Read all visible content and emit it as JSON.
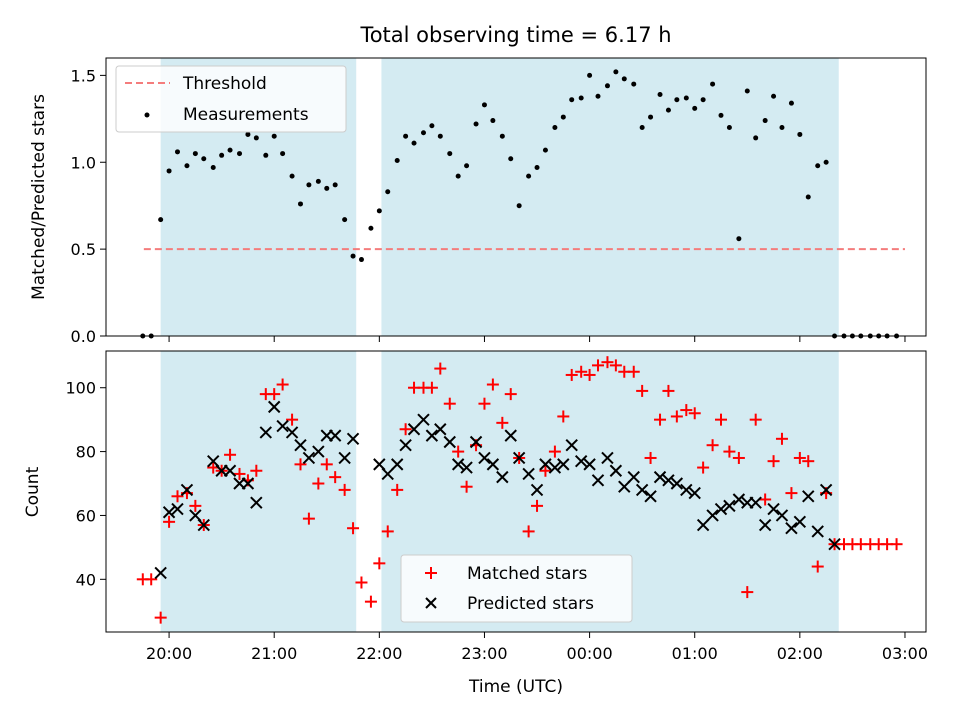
{
  "chart_data": [
    {
      "type": "scatter",
      "title": "Total observing time = 6.17 h",
      "ylabel": "Matched/Predicted stars",
      "ylim": [
        0,
        1.6
      ],
      "yticks": [
        "0.0",
        "0.5",
        "1.0",
        "1.5"
      ],
      "xlim_hours": [
        -0.6,
        7.2
      ],
      "grid": false,
      "legend_position": "upper-left",
      "legend": [
        "Threshold",
        "Measurements"
      ],
      "threshold": {
        "name": "Threshold",
        "value": 0.5,
        "x_range": [
          -0.24,
          7.0
        ],
        "color": "#f47c7c"
      },
      "shaded_intervals": [
        [
          -0.08,
          1.78
        ],
        [
          2.02,
          6.37
        ]
      ],
      "shade_color": "#add8e6",
      "series": [
        {
          "name": "Measurements",
          "color": "#000000",
          "x": [
            -0.25,
            -0.17,
            -0.08,
            0.0,
            0.08,
            0.17,
            0.25,
            0.33,
            0.42,
            0.5,
            0.58,
            0.67,
            0.75,
            0.83,
            0.92,
            1.0,
            1.08,
            1.17,
            1.25,
            1.33,
            1.42,
            1.5,
            1.58,
            1.67,
            1.75,
            1.83,
            1.92,
            2.0,
            2.08,
            2.17,
            2.25,
            2.33,
            2.42,
            2.5,
            2.58,
            2.67,
            2.75,
            2.83,
            2.92,
            3.0,
            3.08,
            3.17,
            3.25,
            3.33,
            3.42,
            3.5,
            3.58,
            3.67,
            3.75,
            3.83,
            3.92,
            4.0,
            4.08,
            4.17,
            4.25,
            4.33,
            4.42,
            4.5,
            4.58,
            4.67,
            4.75,
            4.83,
            4.92,
            5.0,
            5.08,
            5.17,
            5.25,
            5.33,
            5.42,
            5.5,
            5.58,
            5.67,
            5.75,
            5.83,
            5.92,
            6.0,
            6.08,
            6.17,
            6.25,
            6.33,
            6.42,
            6.5,
            6.58,
            6.67,
            6.75,
            6.83,
            6.92
          ],
          "y": [
            0.0,
            0.0,
            0.67,
            0.95,
            1.06,
            0.98,
            1.05,
            1.02,
            0.97,
            1.04,
            1.07,
            1.05,
            1.16,
            1.14,
            1.04,
            1.15,
            1.05,
            0.92,
            0.76,
            0.87,
            0.89,
            0.85,
            0.87,
            0.67,
            0.46,
            0.44,
            0.62,
            0.72,
            0.83,
            1.01,
            1.15,
            1.11,
            1.17,
            1.21,
            1.15,
            1.05,
            0.92,
            0.98,
            1.22,
            1.33,
            1.24,
            1.15,
            1.02,
            0.75,
            0.92,
            0.97,
            1.07,
            1.2,
            1.26,
            1.36,
            1.37,
            1.5,
            1.38,
            1.44,
            1.52,
            1.48,
            1.45,
            1.2,
            1.26,
            1.39,
            1.3,
            1.36,
            1.37,
            1.31,
            1.36,
            1.45,
            1.27,
            1.2,
            0.56,
            1.41,
            1.14,
            1.24,
            1.38,
            1.2,
            1.34,
            1.16,
            0.8,
            0.98,
            1.0,
            0.0,
            0.0,
            0.0,
            0.0,
            0.0,
            0.0,
            0.0,
            0.0
          ]
        }
      ]
    },
    {
      "type": "scatter",
      "xlabel": "Time (UTC)",
      "ylabel": "Count",
      "ylim": [
        23.5,
        111.5
      ],
      "yticks": [
        "40",
        "60",
        "80",
        "100"
      ],
      "xlim_hours": [
        -0.6,
        7.2
      ],
      "xticks": [
        "20:00",
        "21:00",
        "22:00",
        "23:00",
        "00:00",
        "01:00",
        "02:00",
        "03:00"
      ],
      "grid": false,
      "legend_position": "lower-center",
      "legend": [
        "Matched stars",
        "Predicted stars"
      ],
      "shaded_intervals": [
        [
          -0.08,
          1.78
        ],
        [
          2.02,
          6.37
        ]
      ],
      "shade_color": "#add8e6",
      "series": [
        {
          "name": "Matched stars",
          "marker": "plus",
          "color": "#ff0000",
          "x": [
            -0.25,
            -0.17,
            -0.08,
            0.0,
            0.08,
            0.17,
            0.25,
            0.33,
            0.42,
            0.5,
            0.58,
            0.67,
            0.75,
            0.83,
            0.92,
            1.0,
            1.08,
            1.17,
            1.25,
            1.33,
            1.42,
            1.5,
            1.58,
            1.67,
            1.75,
            1.83,
            1.92,
            2.0,
            2.08,
            2.17,
            2.25,
            2.33,
            2.42,
            2.5,
            2.58,
            2.67,
            2.75,
            2.83,
            2.92,
            3.0,
            3.08,
            3.17,
            3.25,
            3.33,
            3.42,
            3.5,
            3.58,
            3.67,
            3.75,
            3.83,
            3.92,
            4.0,
            4.08,
            4.17,
            4.25,
            4.33,
            4.42,
            4.5,
            4.58,
            4.67,
            4.75,
            4.83,
            4.92,
            5.0,
            5.08,
            5.17,
            5.25,
            5.33,
            5.42,
            5.5,
            5.58,
            5.67,
            5.75,
            5.83,
            5.92,
            6.0,
            6.08,
            6.17,
            6.25,
            6.33,
            6.42,
            6.5,
            6.58,
            6.67,
            6.75,
            6.83,
            6.92
          ],
          "y": [
            40,
            40,
            28,
            58,
            66,
            67,
            63,
            57,
            75,
            74,
            79,
            73,
            71,
            74,
            98,
            98,
            101,
            90,
            76,
            59,
            70,
            76,
            72,
            68,
            56,
            39,
            33,
            45,
            55,
            68,
            87,
            100,
            100,
            100,
            106,
            95,
            80,
            69,
            82,
            95,
            101,
            89,
            98,
            78,
            55,
            63,
            74,
            80,
            91,
            104,
            105,
            104,
            107,
            108,
            107,
            105,
            105,
            99,
            78,
            90,
            99,
            91,
            93,
            92,
            75,
            82,
            90,
            80,
            78,
            36,
            90,
            65,
            77,
            84,
            67,
            78,
            77,
            44,
            67,
            51,
            51,
            51,
            51,
            51,
            51,
            51,
            51
          ]
        },
        {
          "name": "Predicted stars",
          "marker": "x",
          "color": "#000000",
          "x": [
            -0.08,
            0.0,
            0.08,
            0.17,
            0.25,
            0.33,
            0.42,
            0.5,
            0.58,
            0.67,
            0.75,
            0.83,
            0.92,
            1.0,
            1.08,
            1.17,
            1.25,
            1.33,
            1.42,
            1.5,
            1.58,
            1.67,
            1.75,
            2.0,
            2.08,
            2.17,
            2.25,
            2.33,
            2.42,
            2.5,
            2.58,
            2.67,
            2.75,
            2.83,
            2.92,
            3.0,
            3.08,
            3.17,
            3.25,
            3.33,
            3.42,
            3.5,
            3.58,
            3.67,
            3.75,
            3.83,
            3.92,
            4.0,
            4.08,
            4.17,
            4.25,
            4.33,
            4.42,
            4.5,
            4.58,
            4.67,
            4.75,
            4.83,
            4.92,
            5.0,
            5.08,
            5.17,
            5.25,
            5.33,
            5.42,
            5.5,
            5.58,
            5.67,
            5.75,
            5.83,
            5.92,
            6.0,
            6.08,
            6.17,
            6.25,
            6.33
          ],
          "y": [
            42,
            61,
            62,
            68,
            60,
            57,
            77,
            74,
            74,
            70,
            70,
            64,
            86,
            94,
            88,
            86,
            82,
            78,
            80,
            85,
            85,
            78,
            84,
            76,
            73,
            76,
            82,
            87,
            90,
            85,
            87,
            83,
            76,
            75,
            83,
            78,
            76,
            72,
            85,
            78,
            73,
            68,
            76,
            75,
            76,
            82,
            77,
            76,
            71,
            78,
            74,
            69,
            72,
            68,
            66,
            72,
            71,
            70,
            68,
            67,
            57,
            60,
            62,
            63,
            65,
            64,
            64,
            57,
            62,
            60,
            56,
            58,
            66,
            55,
            68,
            51
          ]
        }
      ]
    }
  ]
}
